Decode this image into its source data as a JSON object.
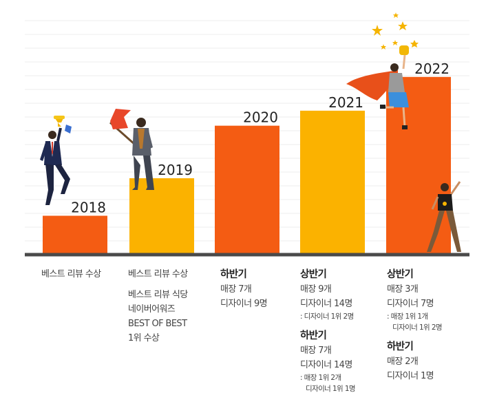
{
  "chart_data": {
    "type": "bar",
    "categories": [
      "2018",
      "2019",
      "2020",
      "2021",
      "2022"
    ],
    "values": [
      1,
      2,
      3.4,
      3.8,
      4.7
    ],
    "ylim": [
      0,
      6.2
    ],
    "grid": true,
    "colors": [
      "#f45c13",
      "#fbb200",
      "#f45c13",
      "#fbb200",
      "#f45c13"
    ],
    "descriptions": [
      {
        "blocks": [
          {
            "lines": [
              "베스트 리뷰 수상"
            ]
          }
        ]
      },
      {
        "blocks": [
          {
            "lines": [
              "베스트 리뷰 수상"
            ]
          },
          {
            "lines": [
              "베스트 리뷰 식당",
              "네이버어워즈",
              "BEST OF BEST",
              "1위 수상"
            ]
          }
        ]
      },
      {
        "blocks": [
          {
            "head": "하반기",
            "lines": [
              "매장 7개",
              "디자이너 9명"
            ]
          }
        ]
      },
      {
        "blocks": [
          {
            "head": "상반기",
            "lines": [
              "매장 9개",
              "디자이너 14명"
            ],
            "notes": [
              ": 디자이너 1위 2명"
            ]
          },
          {
            "head": "하반기",
            "lines": [
              "매장 7개",
              "디자이너 14명"
            ],
            "notes": [
              ": 매장 1위 2개",
              "디자이너 1위 1명"
            ]
          }
        ]
      },
      {
        "blocks": [
          {
            "head": "상반기",
            "lines": [
              "매장 3개",
              "디자이너 7명"
            ],
            "notes": [
              ": 매장 1위 1개",
              "디자이너 1위 2명"
            ]
          },
          {
            "head": "하반기",
            "lines": [
              "매장 2개",
              "디자이너 1명"
            ]
          }
        ]
      }
    ]
  },
  "illustrations": [
    "businessman-with-trophy-icon",
    "businessman-with-flag-icon",
    "superhero-woman-with-trophy-icon",
    "man-with-medal-icon",
    "stars-icon"
  ]
}
